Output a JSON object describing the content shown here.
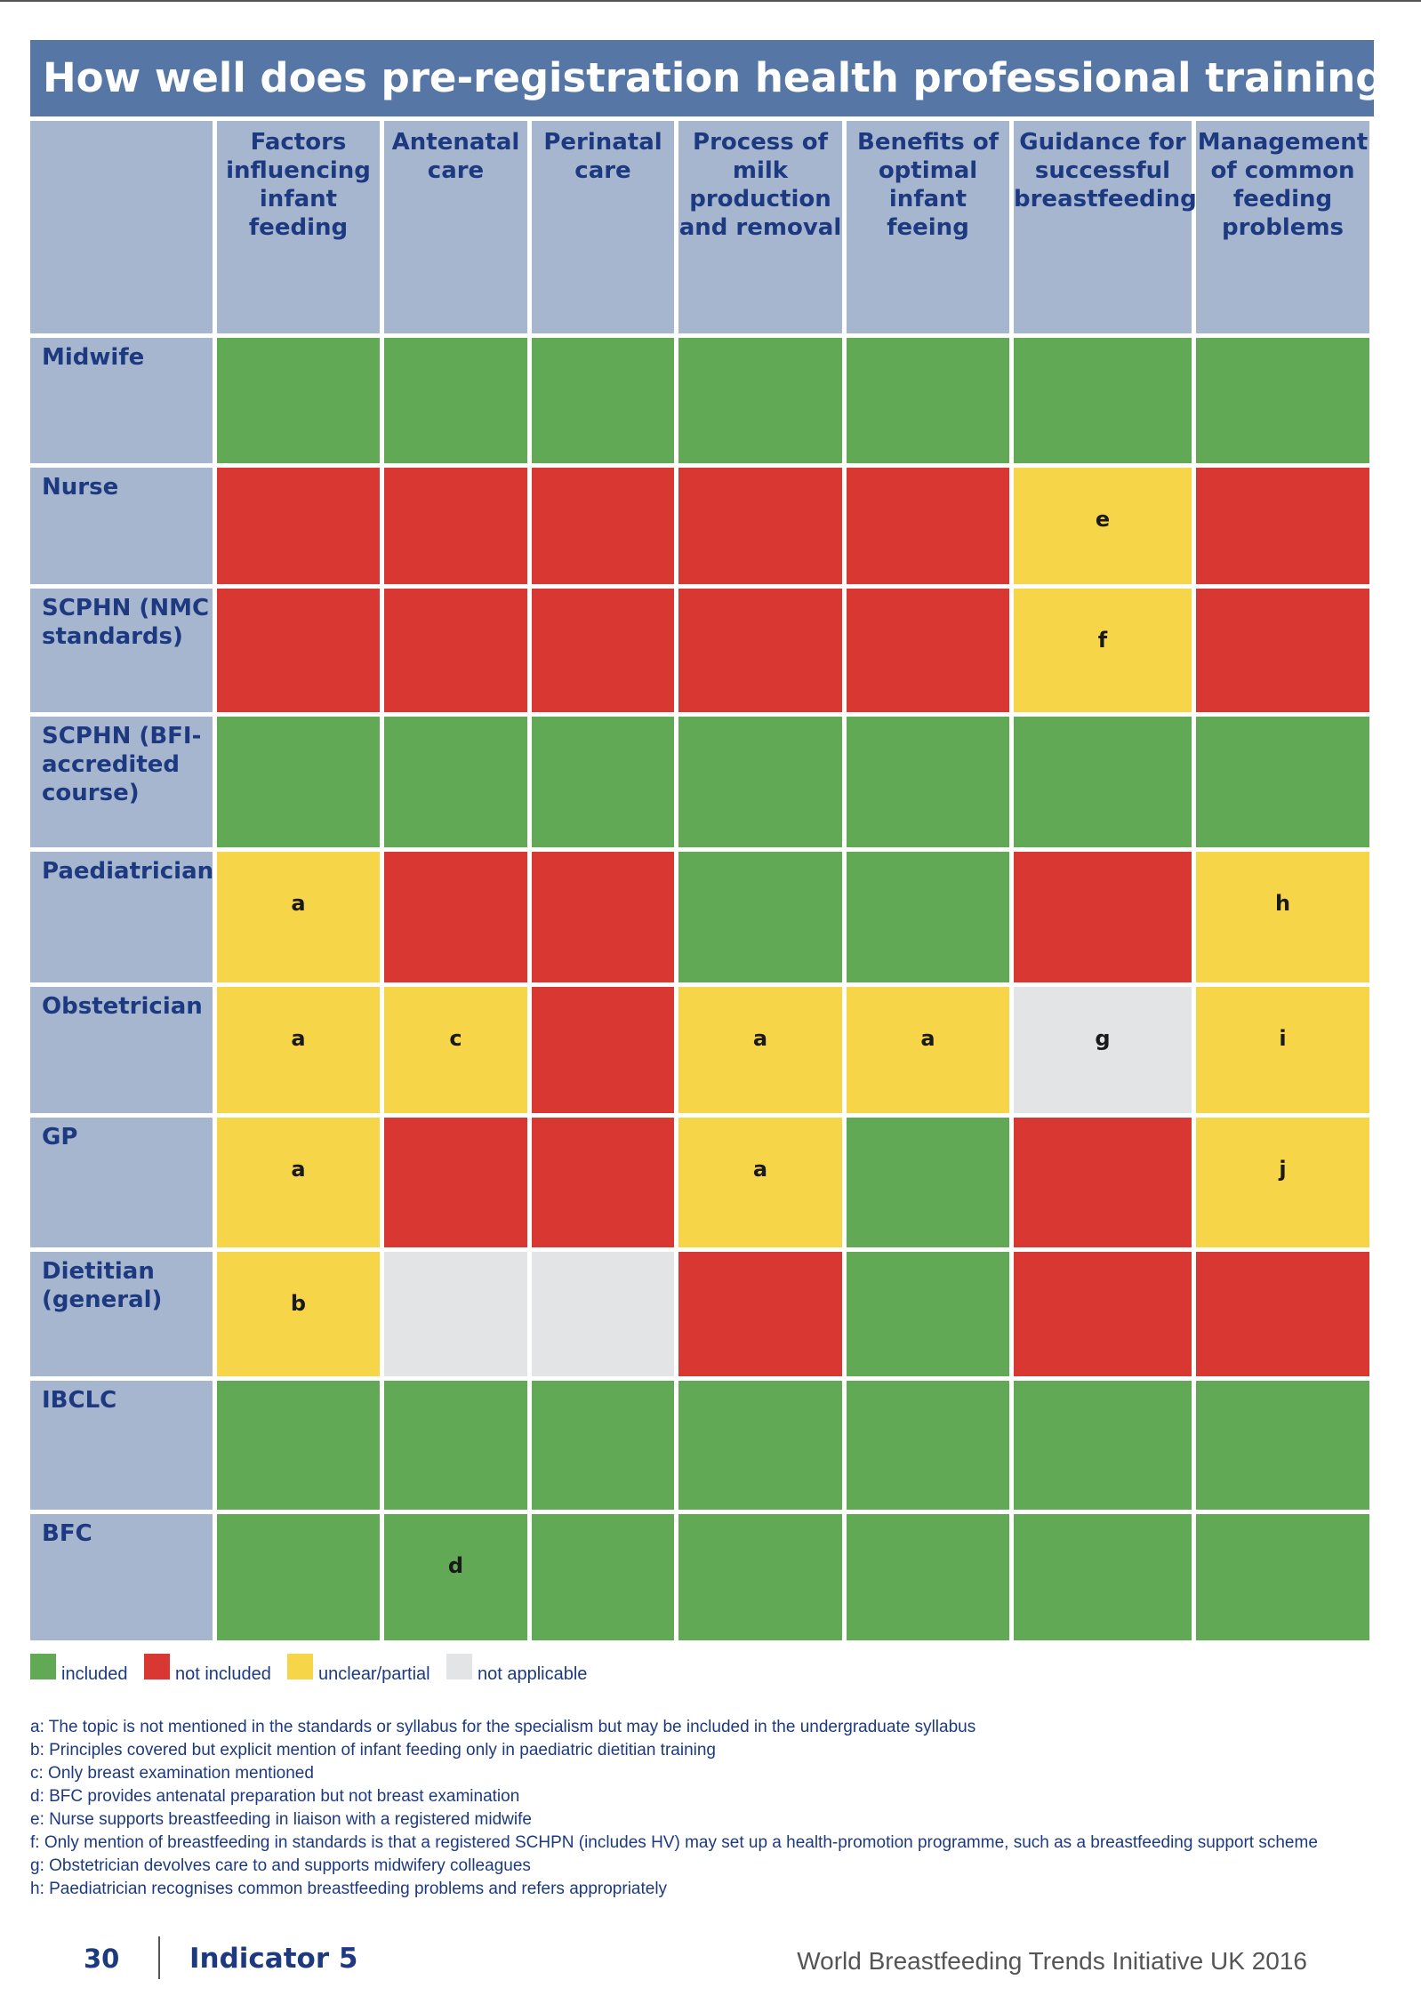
{
  "title": "How well does pre-registration health professional training ...",
  "columns": [
    "Factors influencing infant feeding",
    "Antenatal care",
    "Perinatal care",
    "Process of milk production and removal",
    "Benefits of optimal infant feeing",
    "Guidance for successful breastfeeding",
    "Management of common feeding problems"
  ],
  "rows": [
    {
      "label": "Midwife",
      "cells": [
        {
          "s": "included",
          "n": ""
        },
        {
          "s": "included",
          "n": ""
        },
        {
          "s": "included",
          "n": ""
        },
        {
          "s": "included",
          "n": ""
        },
        {
          "s": "included",
          "n": ""
        },
        {
          "s": "included",
          "n": ""
        },
        {
          "s": "included",
          "n": ""
        }
      ]
    },
    {
      "label": "Nurse",
      "cells": [
        {
          "s": "not_included",
          "n": ""
        },
        {
          "s": "not_included",
          "n": ""
        },
        {
          "s": "not_included",
          "n": ""
        },
        {
          "s": "not_included",
          "n": ""
        },
        {
          "s": "not_included",
          "n": ""
        },
        {
          "s": "partial",
          "n": "e"
        },
        {
          "s": "not_included",
          "n": ""
        }
      ]
    },
    {
      "label": "SCPHN (NMC standards)",
      "cells": [
        {
          "s": "not_included",
          "n": ""
        },
        {
          "s": "not_included",
          "n": ""
        },
        {
          "s": "not_included",
          "n": ""
        },
        {
          "s": "not_included",
          "n": ""
        },
        {
          "s": "not_included",
          "n": ""
        },
        {
          "s": "partial",
          "n": "f"
        },
        {
          "s": "not_included",
          "n": ""
        }
      ]
    },
    {
      "label": "SCPHN (BFI-accredited course)",
      "cells": [
        {
          "s": "included",
          "n": ""
        },
        {
          "s": "included",
          "n": ""
        },
        {
          "s": "included",
          "n": ""
        },
        {
          "s": "included",
          "n": ""
        },
        {
          "s": "included",
          "n": ""
        },
        {
          "s": "included",
          "n": ""
        },
        {
          "s": "included",
          "n": ""
        }
      ]
    },
    {
      "label": "Paediatrician",
      "cells": [
        {
          "s": "partial",
          "n": "a"
        },
        {
          "s": "not_included",
          "n": ""
        },
        {
          "s": "not_included",
          "n": ""
        },
        {
          "s": "included",
          "n": ""
        },
        {
          "s": "included",
          "n": ""
        },
        {
          "s": "not_included",
          "n": ""
        },
        {
          "s": "partial",
          "n": "h"
        }
      ]
    },
    {
      "label": "Obstetrician",
      "cells": [
        {
          "s": "partial",
          "n": "a"
        },
        {
          "s": "partial",
          "n": "c"
        },
        {
          "s": "not_included",
          "n": ""
        },
        {
          "s": "partial",
          "n": "a"
        },
        {
          "s": "partial",
          "n": "a"
        },
        {
          "s": "not_applicable",
          "n": "g"
        },
        {
          "s": "partial",
          "n": "i"
        }
      ]
    },
    {
      "label": "GP",
      "cells": [
        {
          "s": "partial",
          "n": "a"
        },
        {
          "s": "not_included",
          "n": ""
        },
        {
          "s": "not_included",
          "n": ""
        },
        {
          "s": "partial",
          "n": "a"
        },
        {
          "s": "included",
          "n": ""
        },
        {
          "s": "not_included",
          "n": ""
        },
        {
          "s": "partial",
          "n": "j"
        }
      ]
    },
    {
      "label": "Dietitian (general)",
      "cells": [
        {
          "s": "partial",
          "n": "b"
        },
        {
          "s": "not_applicable",
          "n": ""
        },
        {
          "s": "not_applicable",
          "n": ""
        },
        {
          "s": "not_included",
          "n": ""
        },
        {
          "s": "included",
          "n": ""
        },
        {
          "s": "not_included",
          "n": ""
        },
        {
          "s": "not_included",
          "n": ""
        }
      ]
    },
    {
      "label": "IBCLC",
      "cells": [
        {
          "s": "included",
          "n": ""
        },
        {
          "s": "included",
          "n": ""
        },
        {
          "s": "included",
          "n": ""
        },
        {
          "s": "included",
          "n": ""
        },
        {
          "s": "included",
          "n": ""
        },
        {
          "s": "included",
          "n": ""
        },
        {
          "s": "included",
          "n": ""
        }
      ]
    },
    {
      "label": "BFC",
      "cells": [
        {
          "s": "included",
          "n": ""
        },
        {
          "s": "included",
          "n": "d"
        },
        {
          "s": "included",
          "n": ""
        },
        {
          "s": "included",
          "n": ""
        },
        {
          "s": "included",
          "n": ""
        },
        {
          "s": "included",
          "n": ""
        },
        {
          "s": "included",
          "n": ""
        }
      ]
    }
  ],
  "status_colors": {
    "included": "#61a955",
    "not_included": "#d93731",
    "partial": "#f7d548",
    "not_applicable": "#e3e4e6"
  },
  "legend": [
    {
      "key": "included",
      "label": "included",
      "color": "#61a955"
    },
    {
      "key": "not_included",
      "label": "not included",
      "color": "#d93731"
    },
    {
      "key": "partial",
      "label": "unclear/partial",
      "color": "#f7d548"
    },
    {
      "key": "not_applicable",
      "label": "not applicable",
      "color": "#e3e4e6"
    }
  ],
  "footnotes": [
    "a: The topic is not mentioned in the standards or syllabus for the specialism but may be included in the undergraduate syllabus",
    "b:  Principles covered but explicit mention of infant feeding only in paediatric dietitian training",
    "c:  Only breast examination mentioned",
    "d:  BFC provides antenatal preparation but not breast examination",
    "e:  Nurse supports breastfeeding in liaison with a registered midwife",
    "f:  Only mention of breastfeeding in standards is that a registered SCHPN (includes HV) may set up a health-promotion programme, such as a breastfeeding support scheme",
    "g:  Obstetrician devolves care to and supports midwifery colleagues",
    "h:  Paediatrician recognises common breastfeeding problems and refers appropriately"
  ],
  "footer": {
    "page": "30",
    "indicator": "Indicator 5",
    "publication": "World Breastfeeding Trends Initiative UK 2016"
  }
}
